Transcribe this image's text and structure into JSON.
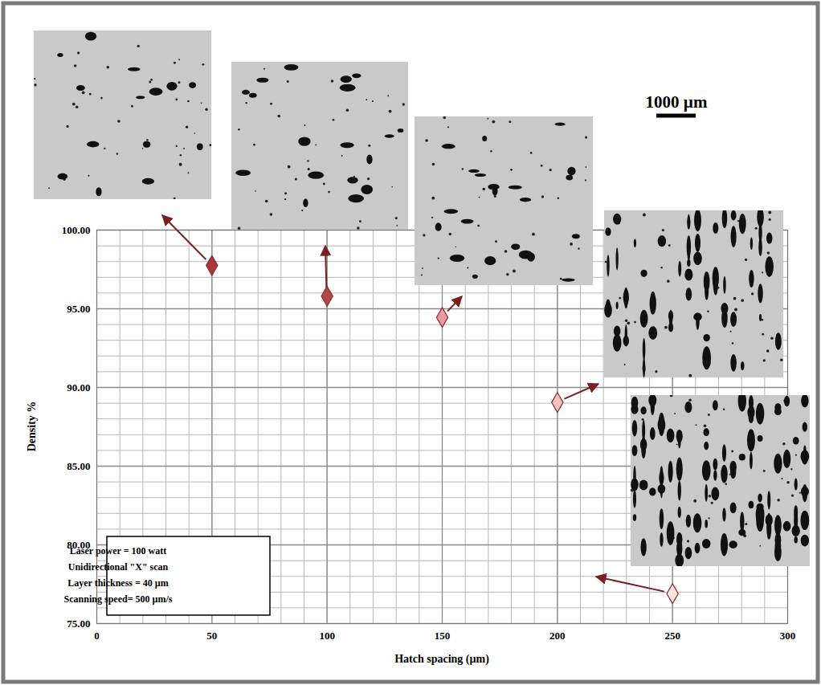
{
  "chart_data": {
    "type": "scatter",
    "x_label": "Hatch spacing (µm)",
    "y_label": "Density %",
    "x": [
      50,
      100,
      150,
      200,
      250
    ],
    "values": [
      97.75,
      95.8,
      94.45,
      89.05,
      76.9
    ],
    "colors": [
      "#a8383b",
      "#b5474a",
      "#e89a9c",
      "#f5c0c0",
      "#fde2e2"
    ],
    "marker": "diamond",
    "xlim": [
      0,
      300
    ],
    "ylim": [
      75,
      100
    ],
    "xticks": [
      0,
      50,
      100,
      150,
      200,
      250,
      300
    ],
    "yticks": [
      {
        "value": 75,
        "label": "75.00"
      },
      {
        "value": 80,
        "label": "80.00"
      },
      {
        "value": 85,
        "label": "85.00"
      },
      {
        "value": 90,
        "label": "90.00"
      },
      {
        "value": 95,
        "label": "95.00"
      },
      {
        "value": 100,
        "label": "100.00"
      }
    ],
    "grid": true,
    "annotations": {
      "scale_bar": "1000 µm",
      "parameters": [
        "Laser power = 100 watt",
        "Unidirectional \"X\" scan",
        "Layer thickness = 40 µm",
        "Scanning speed= 500 µm/s"
      ]
    }
  }
}
